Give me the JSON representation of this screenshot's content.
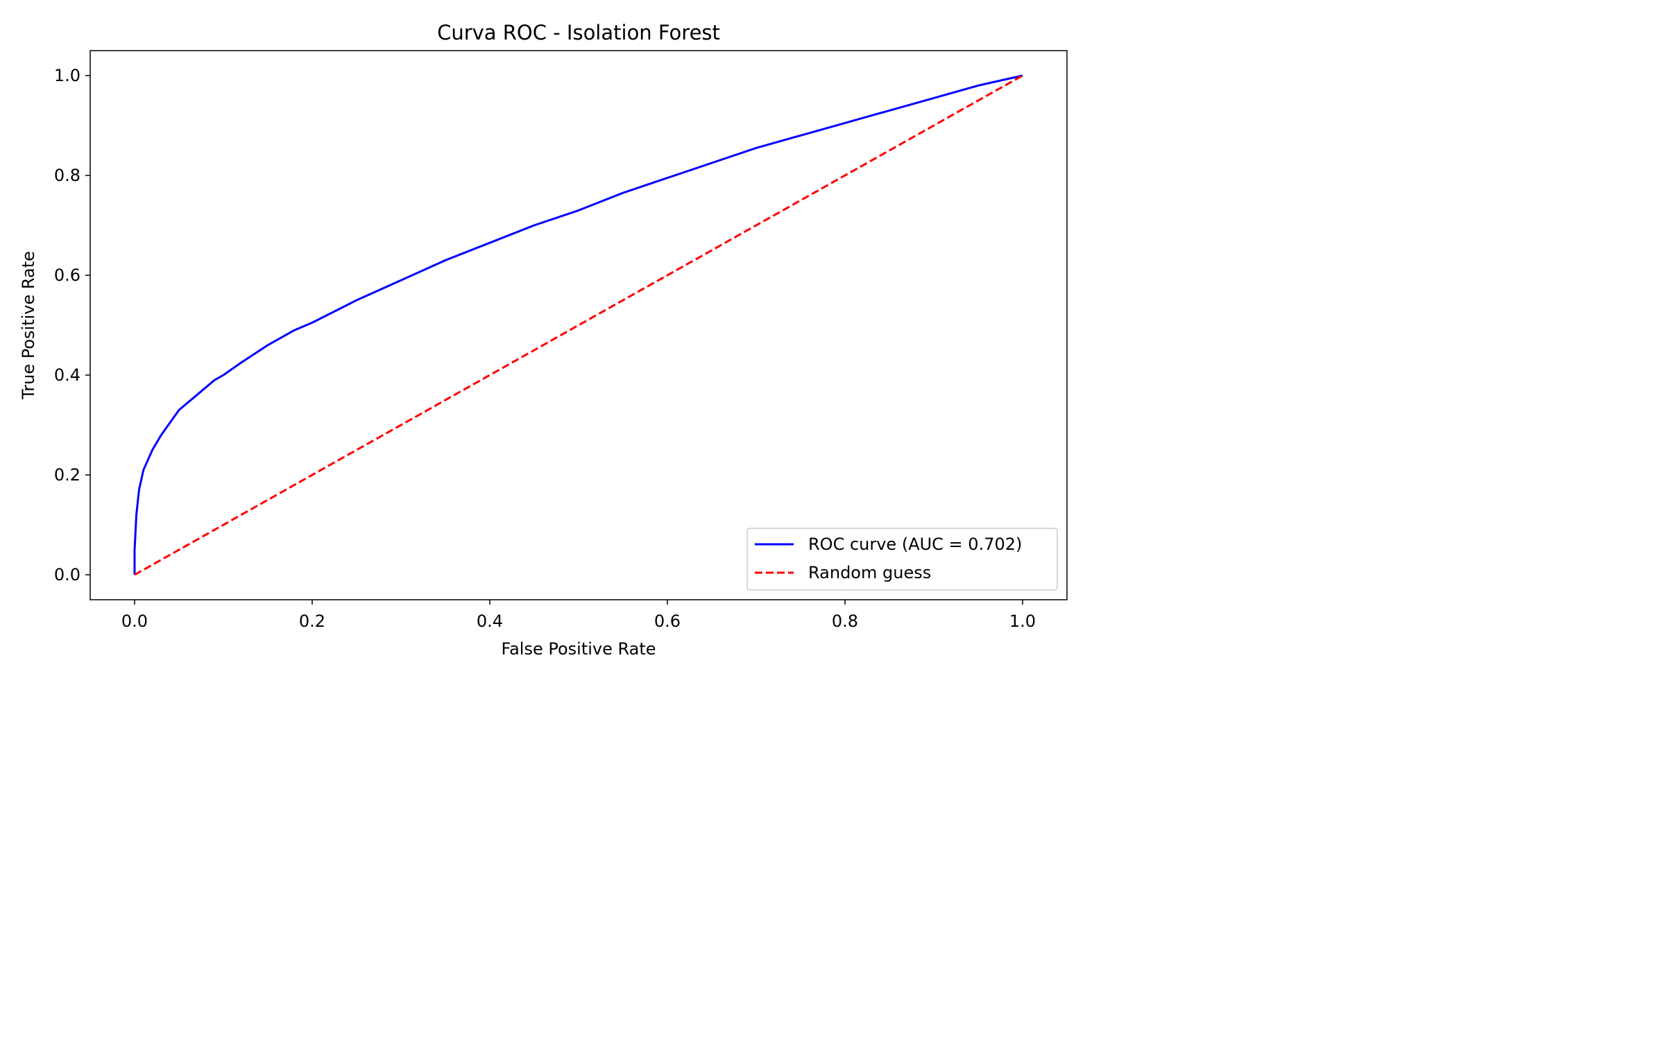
{
  "chart_data": {
    "type": "line",
    "title": "Curva ROC - Isolation Forest",
    "xlabel": "False Positive Rate",
    "ylabel": "True Positive Rate",
    "xlim": [
      -0.05,
      1.05
    ],
    "ylim": [
      -0.05,
      1.05
    ],
    "xticks": [
      0.0,
      0.2,
      0.4,
      0.6,
      0.8,
      1.0
    ],
    "yticks": [
      0.0,
      0.2,
      0.4,
      0.6,
      0.8,
      1.0
    ],
    "xtick_labels": [
      "0.0",
      "0.2",
      "0.4",
      "0.6",
      "0.8",
      "1.0"
    ],
    "ytick_labels": [
      "0.0",
      "0.2",
      "0.4",
      "0.6",
      "0.8",
      "1.0"
    ],
    "grid": false,
    "legend_position": "lower right",
    "series": [
      {
        "name": "ROC curve (AUC = 0.702)",
        "color": "#0000ff",
        "style": "solid",
        "x": [
          0.0,
          0.0,
          0.002,
          0.005,
          0.01,
          0.02,
          0.03,
          0.04,
          0.05,
          0.07,
          0.09,
          0.1,
          0.12,
          0.15,
          0.18,
          0.2,
          0.25,
          0.3,
          0.35,
          0.4,
          0.45,
          0.5,
          0.55,
          0.6,
          0.65,
          0.7,
          0.75,
          0.8,
          0.85,
          0.9,
          0.95,
          1.0
        ],
        "y": [
          0.0,
          0.05,
          0.12,
          0.17,
          0.21,
          0.25,
          0.28,
          0.305,
          0.33,
          0.36,
          0.39,
          0.4,
          0.425,
          0.46,
          0.49,
          0.505,
          0.55,
          0.59,
          0.63,
          0.665,
          0.7,
          0.73,
          0.765,
          0.795,
          0.825,
          0.855,
          0.88,
          0.905,
          0.93,
          0.955,
          0.98,
          1.0
        ]
      },
      {
        "name": "Random guess",
        "color": "#ff0000",
        "style": "dashed",
        "x": [
          0.0,
          1.0
        ],
        "y": [
          0.0,
          1.0
        ]
      }
    ]
  }
}
